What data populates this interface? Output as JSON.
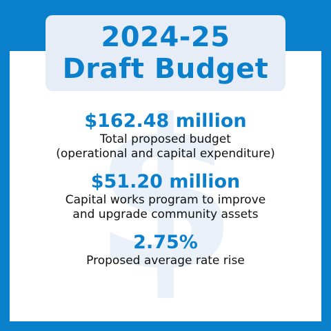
{
  "title": {
    "line1": "2024-25",
    "line2": "Draft Budget"
  },
  "watermark_symbol": "$",
  "stats": [
    {
      "value": "$162.48 million",
      "description_lines": [
        "Total proposed budget",
        "(operational and capital expenditure)"
      ]
    },
    {
      "value": "$51.20 million",
      "description_lines": [
        "Capital works program to improve",
        "and upgrade community assets"
      ]
    },
    {
      "value": "2.75%",
      "description_lines": [
        "Proposed average rate rise"
      ]
    }
  ],
  "colors": {
    "brand_blue": "#0a7fcb",
    "title_box": "#e6edf7",
    "panel": "#ffffff",
    "watermark": "#eaf1f9"
  }
}
